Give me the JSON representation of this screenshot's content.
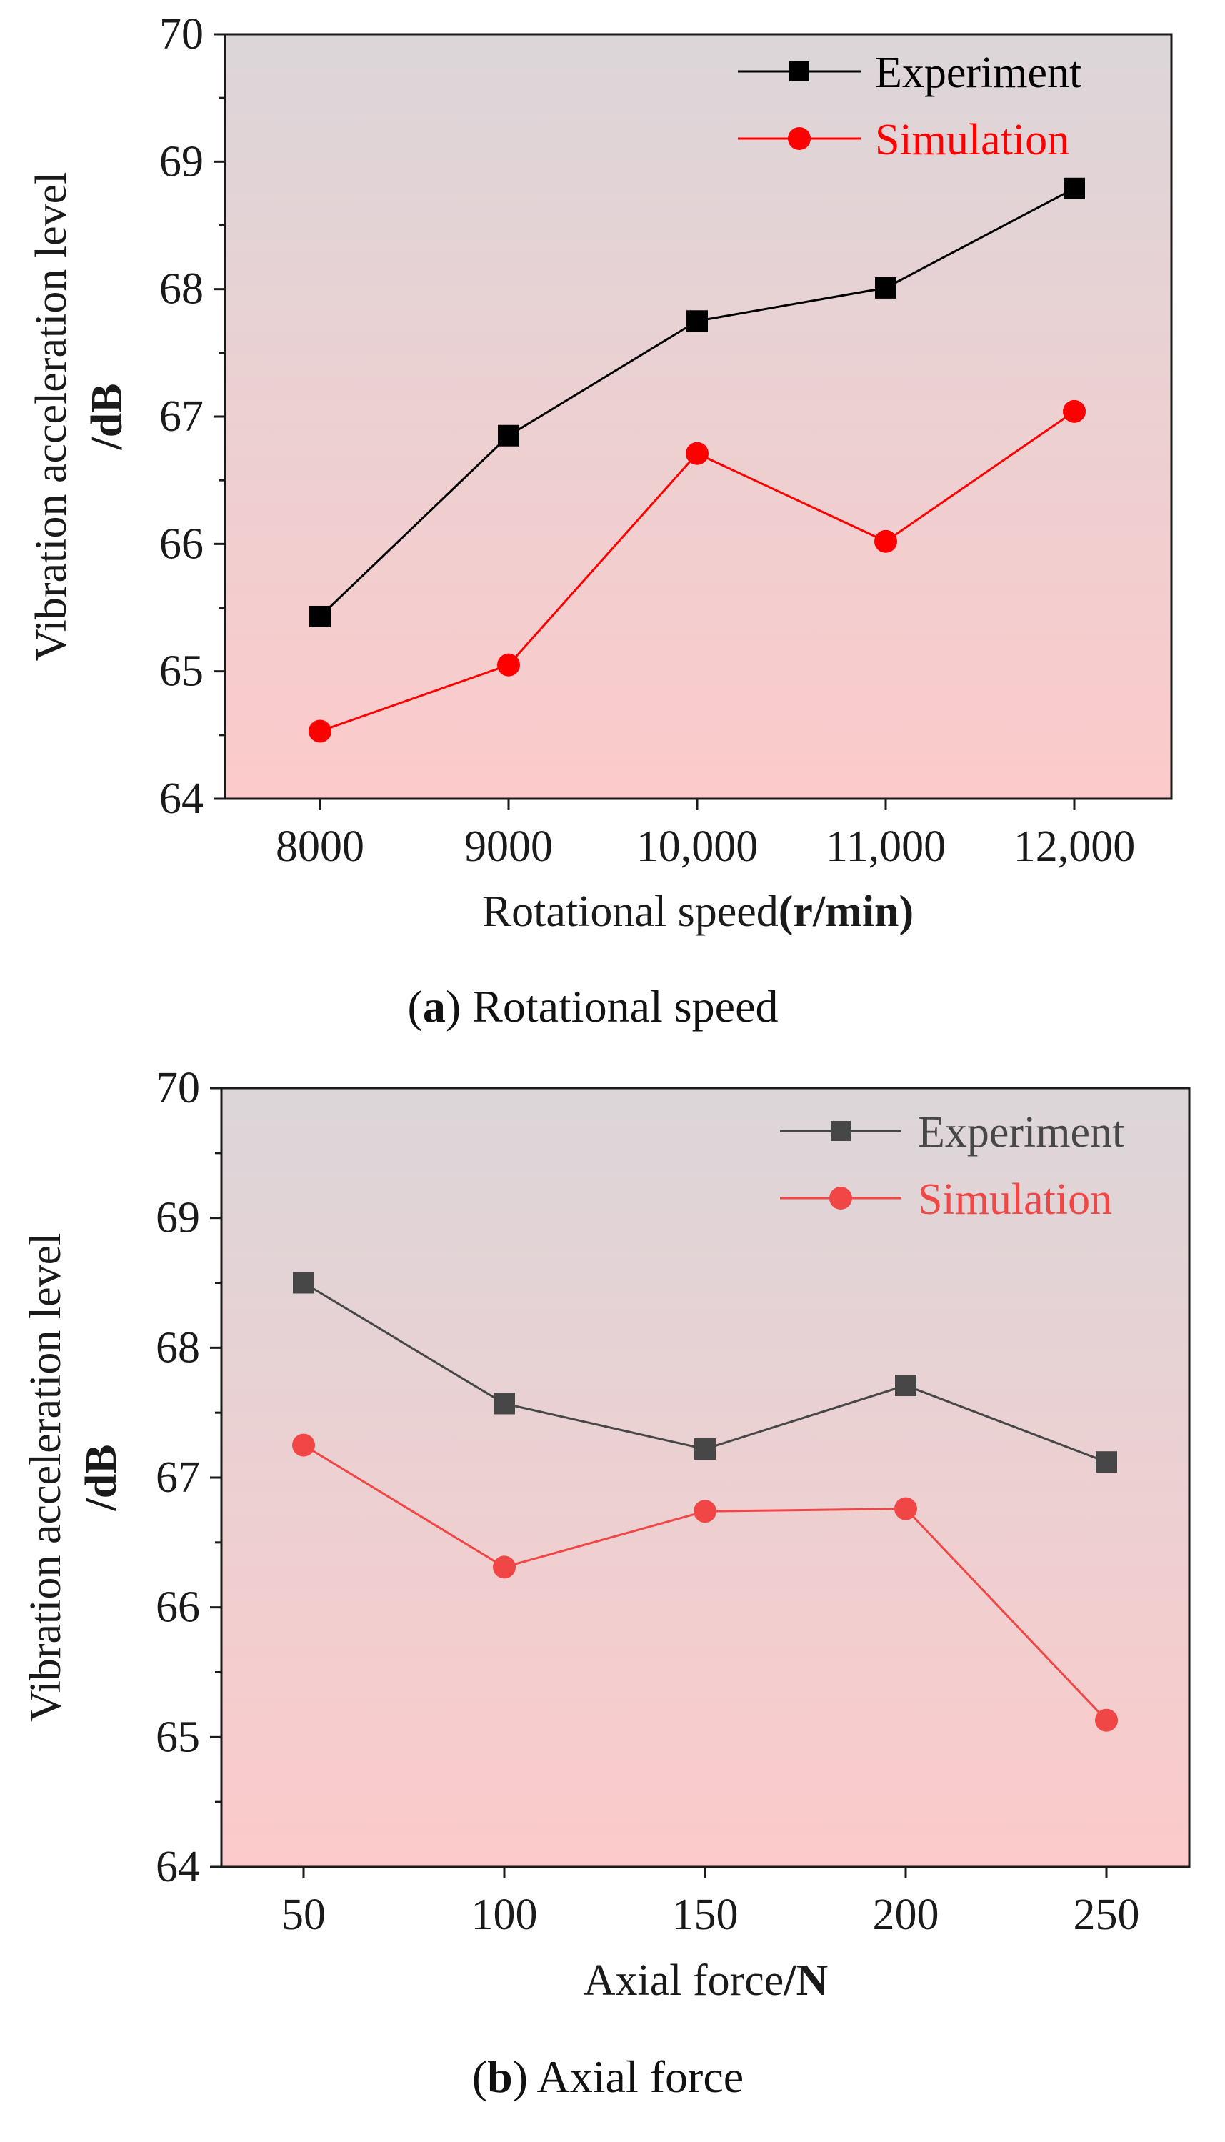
{
  "chart_data": [
    {
      "type": "line",
      "caption_letter": "a",
      "caption_text": "Rotational speed",
      "categories": [
        "8000",
        "9000",
        "10,000",
        "11,000",
        "12,000"
      ],
      "xlabel": "Rotational speed",
      "xlabel_unit": "(r/min)",
      "ylabel": "Vibration acceleration level",
      "ylabel_unit": "/dB",
      "ylim": [
        64,
        70
      ],
      "yticks": [
        "64",
        "65",
        "66",
        "67",
        "68",
        "69",
        "70"
      ],
      "legend_position": "top-right",
      "series": [
        {
          "name": "Experiment",
          "color": "#000000",
          "marker": "square",
          "values": [
            65.43,
            66.85,
            67.75,
            68.01,
            68.79
          ]
        },
        {
          "name": "Simulation",
          "color": "#ff0000",
          "marker": "circle",
          "values": [
            64.53,
            65.05,
            66.71,
            66.02,
            67.04
          ]
        }
      ]
    },
    {
      "type": "line",
      "caption_letter": "b",
      "caption_text": "Axial force",
      "categories": [
        "50",
        "100",
        "150",
        "200",
        "250"
      ],
      "xlabel": "Axial force",
      "xlabel_unit": "/N",
      "ylabel": "Vibration acceleration level",
      "ylabel_unit": "/dB",
      "ylim": [
        64,
        70
      ],
      "yticks": [
        "64",
        "65",
        "66",
        "67",
        "68",
        "69",
        "70"
      ],
      "legend_position": "top-right",
      "series": [
        {
          "name": "Experiment",
          "color": "#474747",
          "marker": "square",
          "values": [
            68.5,
            67.57,
            67.22,
            67.71,
            67.12
          ]
        },
        {
          "name": "Simulation",
          "color": "#f04646",
          "marker": "circle",
          "values": [
            67.25,
            66.31,
            66.74,
            66.76,
            65.13
          ]
        }
      ]
    }
  ]
}
